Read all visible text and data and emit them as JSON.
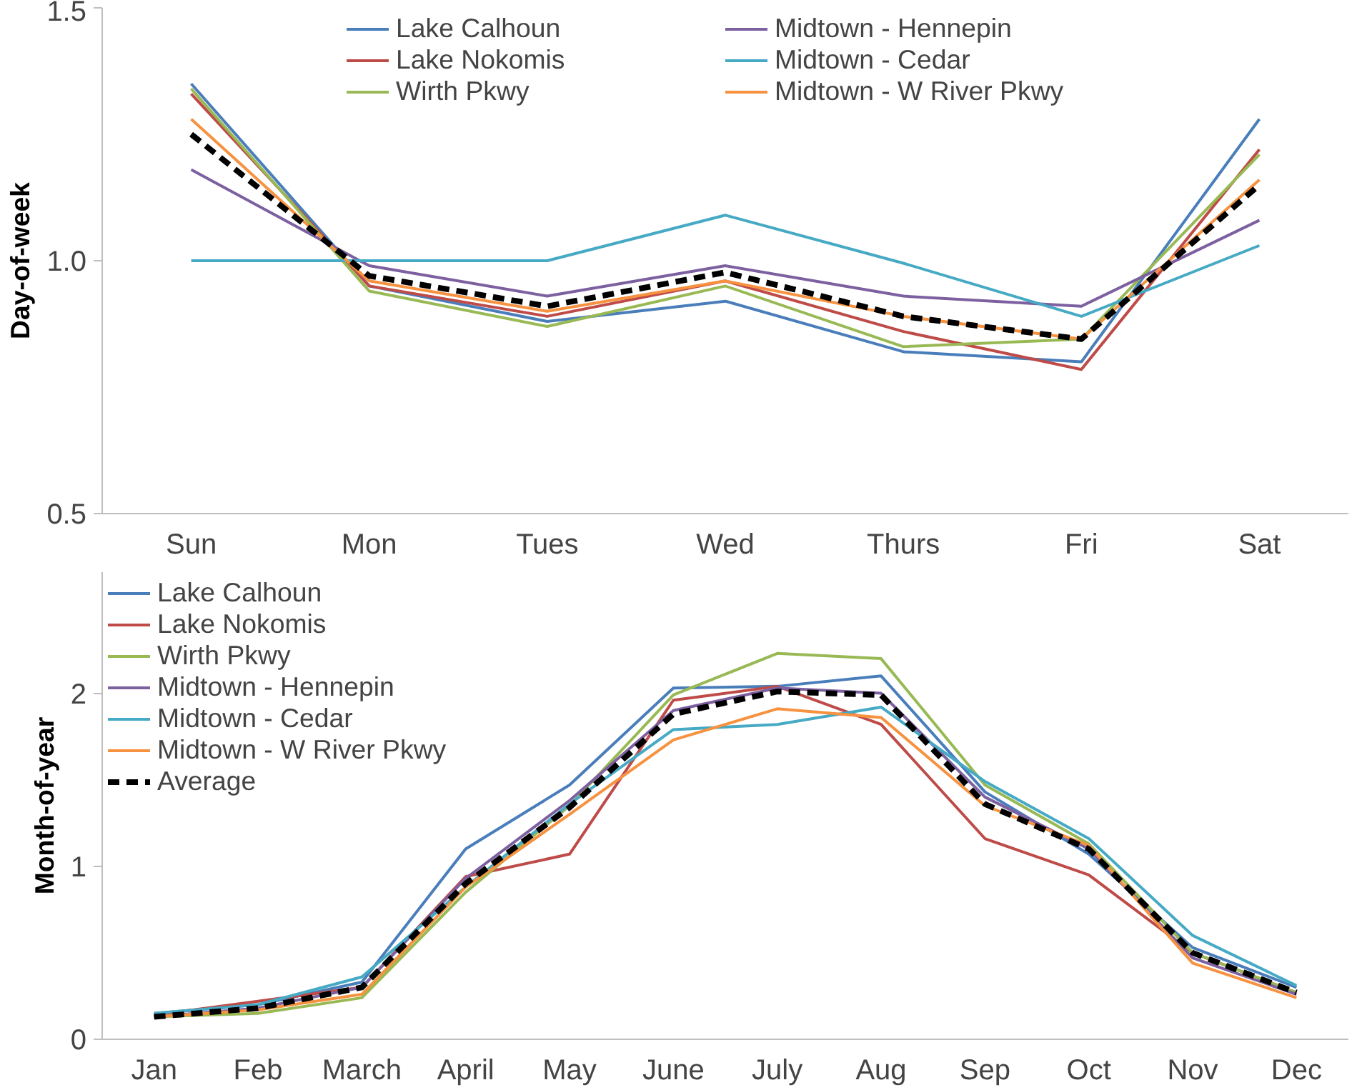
{
  "chart_data": [
    {
      "type": "line",
      "ylabel": "Day-of-week",
      "categories": [
        "Sun",
        "Mon",
        "Tues",
        "Wed",
        "Thurs",
        "Fri",
        "Sat"
      ],
      "ylim": [
        0.5,
        1.5
      ],
      "yticks": [
        0.5,
        {
          "value": 1.0,
          "label": "1.0"
        },
        1.5
      ],
      "grid": false,
      "legend": "top",
      "series": [
        {
          "name": "Lake Calhoun",
          "color": "#4a7ebb",
          "values": [
            1.35,
            0.95,
            0.88,
            0.92,
            0.82,
            0.8,
            1.28
          ]
        },
        {
          "name": "Lake Nokomis",
          "color": "#be4b48",
          "values": [
            1.33,
            0.95,
            0.89,
            0.96,
            0.86,
            0.785,
            1.22
          ]
        },
        {
          "name": "Wirth Pkwy",
          "color": "#98b954",
          "values": [
            1.34,
            0.94,
            0.87,
            0.95,
            0.83,
            0.845,
            1.21
          ]
        },
        {
          "name": "Midtown - Hennepin",
          "color": "#7d60a0",
          "values": [
            1.18,
            0.99,
            0.93,
            0.99,
            0.93,
            0.91,
            1.08
          ]
        },
        {
          "name": "Midtown - Cedar",
          "color": "#46aac5",
          "values": [
            1.0,
            1.0,
            1.0,
            1.09,
            0.995,
            0.89,
            1.03
          ]
        },
        {
          "name": "Midtown - W River Pkwy",
          "color": "#f69240",
          "values": [
            1.28,
            0.96,
            0.9,
            0.96,
            0.89,
            0.845,
            1.16
          ]
        },
        {
          "color": "#000000",
          "line_style": "dashed",
          "values": [
            1.25,
            0.97,
            0.91,
            0.977,
            0.89,
            0.845,
            1.15
          ]
        }
      ]
    },
    {
      "type": "line",
      "ylabel": "Month-of-year",
      "categories": [
        "Jan",
        "Feb",
        "March",
        "April",
        "May",
        "June",
        "July",
        "Aug",
        "Sep",
        "Oct",
        "Nov",
        "Dec"
      ],
      "ylim": [
        0,
        2.7
      ],
      "yticks": [
        0,
        1,
        2
      ],
      "grid": false,
      "legend": "top left",
      "series": [
        {
          "name": "Lake Calhoun",
          "color": "#4a7ebb",
          "values": [
            0.15,
            0.2,
            0.33,
            1.1,
            1.47,
            2.03,
            2.04,
            2.1,
            1.43,
            1.07,
            0.53,
            0.3
          ]
        },
        {
          "name": "Lake Nokomis",
          "color": "#be4b48",
          "values": [
            0.14,
            0.22,
            0.3,
            0.94,
            1.07,
            1.96,
            2.04,
            1.82,
            1.16,
            0.95,
            0.5,
            0.27
          ]
        },
        {
          "name": "Wirth Pkwy",
          "color": "#98b954",
          "values": [
            0.13,
            0.15,
            0.24,
            0.85,
            1.35,
            1.99,
            2.23,
            2.2,
            1.47,
            1.13,
            0.5,
            0.27
          ]
        },
        {
          "name": "Midtown - Hennepin",
          "color": "#7d60a0",
          "values": [
            0.13,
            0.18,
            0.3,
            0.93,
            1.38,
            1.9,
            2.03,
            2.0,
            1.4,
            1.1,
            0.47,
            0.26
          ]
        },
        {
          "name": "Midtown - Cedar",
          "color": "#46aac5",
          "values": [
            0.15,
            0.2,
            0.36,
            0.88,
            1.36,
            1.79,
            1.82,
            1.92,
            1.49,
            1.16,
            0.6,
            0.31
          ]
        },
        {
          "name": "Midtown - W River Pkwy",
          "color": "#f69240",
          "values": [
            0.13,
            0.17,
            0.26,
            0.88,
            1.3,
            1.73,
            1.91,
            1.86,
            1.35,
            1.12,
            0.44,
            0.24
          ]
        },
        {
          "name": "Average",
          "color": "#000000",
          "line_style": "dashed",
          "values": [
            0.13,
            0.18,
            0.3,
            0.9,
            1.34,
            1.88,
            2.01,
            1.99,
            1.36,
            1.1,
            0.5,
            0.27
          ]
        }
      ]
    }
  ]
}
